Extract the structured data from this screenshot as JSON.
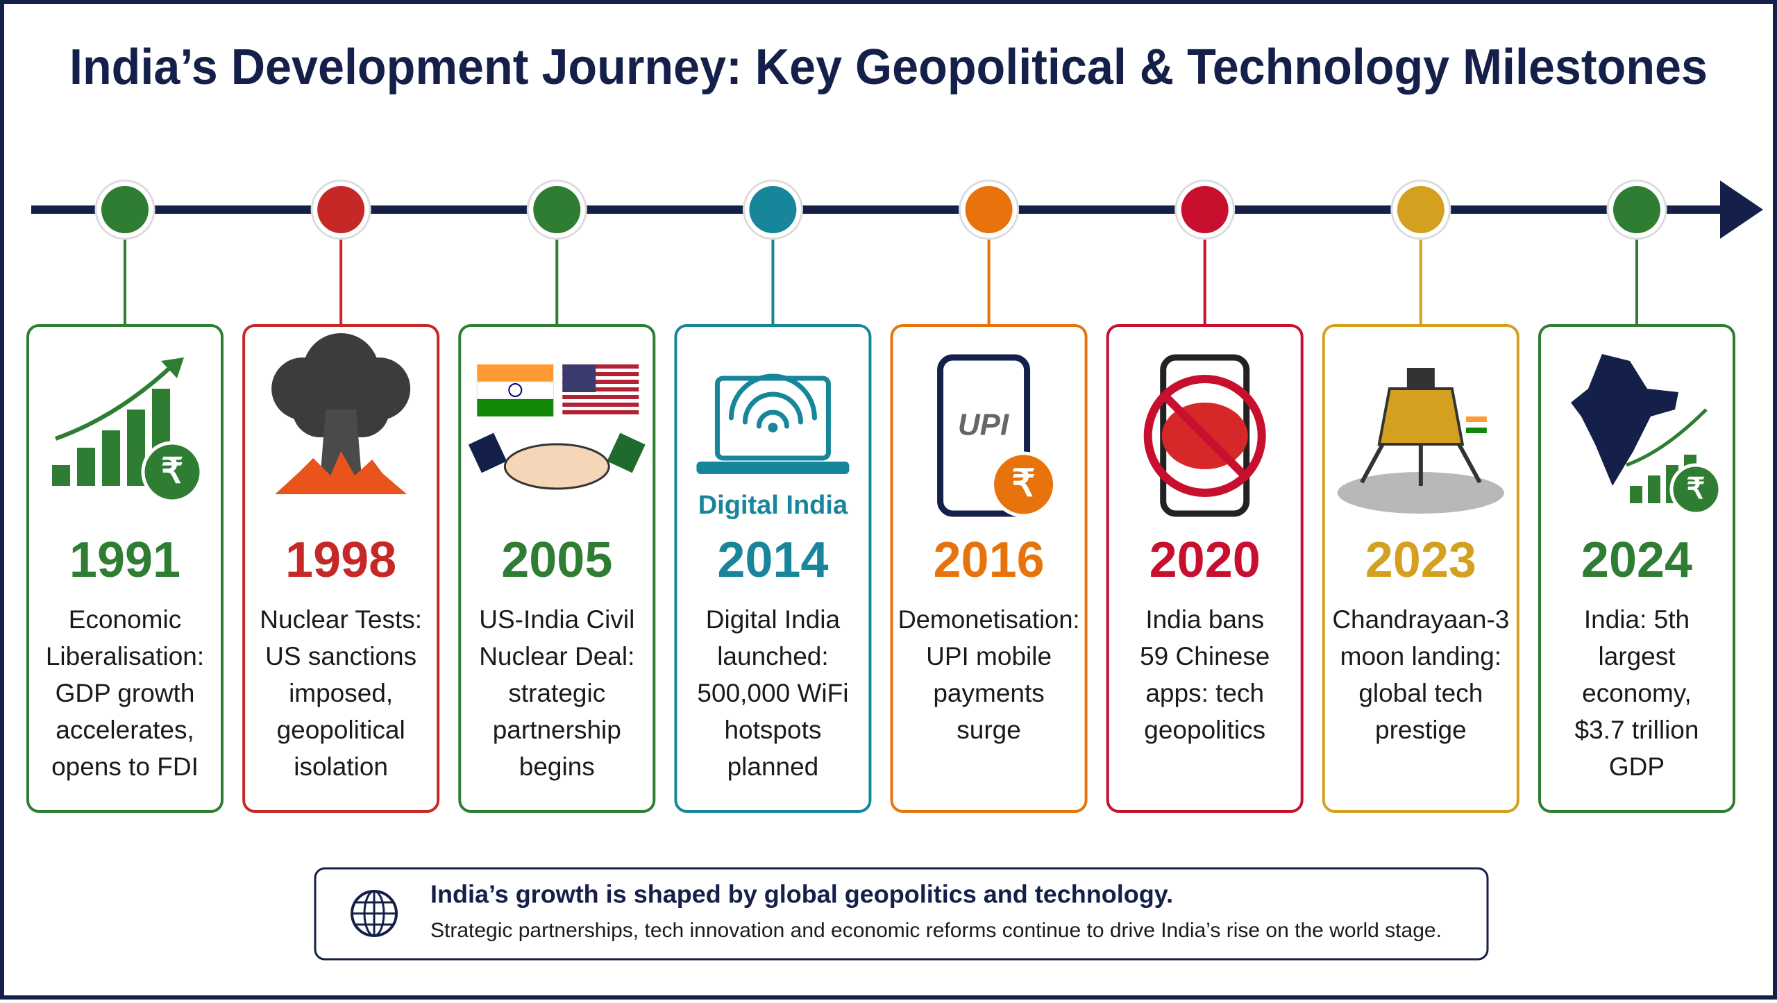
{
  "title": "India’s Development Journey: Key Geopolitical & Technology Milestones",
  "milestones": [
    {
      "year": "1991",
      "color": "#2e7d32",
      "lines": [
        "Economic",
        "Liberalisation:",
        "GDP growth",
        "accelerates,",
        "opens to FDI"
      ],
      "icon_labels": [
        "₹"
      ]
    },
    {
      "year": "1998",
      "color": "#c62828",
      "lines": [
        "Nuclear Tests:",
        "US sanctions",
        "imposed,",
        "geopolitical",
        "isolation"
      ]
    },
    {
      "year": "2005",
      "color": "#2e7d32",
      "lines": [
        "US-India Civil",
        "Nuclear Deal:",
        "strategic",
        "partnership",
        "begins"
      ]
    },
    {
      "year": "2014",
      "color": "#17869a",
      "lines": [
        "Digital India",
        "launched:",
        "500,000 WiFi",
        "hotspots",
        "planned"
      ],
      "icon_labels": [
        "Digital India"
      ]
    },
    {
      "year": "2016",
      "color": "#e8730c",
      "lines": [
        "Demonetisation:",
        "UPI mobile",
        "payments",
        "surge"
      ],
      "icon_labels": [
        "UPI",
        "₹"
      ]
    },
    {
      "year": "2020",
      "color": "#c8102e",
      "lines": [
        "India bans",
        "59 Chinese",
        "apps: tech",
        "geopolitics"
      ]
    },
    {
      "year": "2023",
      "color": "#d4a020",
      "lines": [
        "Chandrayaan-3",
        "moon landing:",
        "global tech",
        "prestige"
      ]
    },
    {
      "year": "2024",
      "color": "#2e7d32",
      "lines": [
        "India: 5th",
        "largest",
        "economy,",
        "$3.7 trillion",
        "GDP"
      ],
      "icon_labels": [
        "₹"
      ]
    }
  ],
  "footer": {
    "heading": "India’s growth is shaped by global geopolitics and technology.",
    "text": "Strategic partnerships, tech innovation and economic reforms continue to drive India’s rise on the world stage."
  }
}
